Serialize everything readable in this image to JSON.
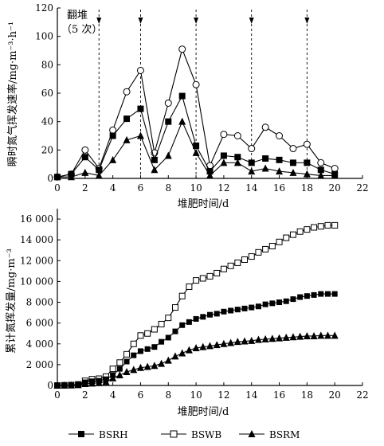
{
  "chart_data": [
    {
      "type": "line",
      "ylabel": "瞬时氮气挥发速率/mg·m⁻³·h⁻¹",
      "xlabel": "堆肥时间/d",
      "xlim": [
        0,
        22
      ],
      "ylim": [
        0,
        120
      ],
      "x_ticks": [
        "0",
        "2",
        "4",
        "6",
        "8",
        "10",
        "12",
        "14",
        "16",
        "18",
        "20",
        "22"
      ],
      "y_ticks": [
        "0",
        "20",
        "40",
        "60",
        "80",
        "100",
        "120"
      ],
      "annotation_lines": [
        "翻堆",
        "（5 次）"
      ],
      "turning_days": [
        3,
        6,
        10,
        14,
        18
      ],
      "x": [
        0,
        1,
        2,
        3,
        4,
        5,
        6,
        7,
        8,
        9,
        10,
        11,
        12,
        13,
        14,
        15,
        16,
        17,
        18,
        19,
        20
      ],
      "series": [
        {
          "name": "BSWB",
          "marker": "open-circle",
          "values": [
            1,
            3,
            20,
            7,
            34,
            61,
            76,
            18,
            53,
            91,
            66,
            9,
            31,
            30,
            21,
            36,
            30,
            21,
            24,
            11,
            7
          ]
        },
        {
          "name": "BSRH",
          "marker": "filled-square",
          "values": [
            1,
            3,
            15,
            6,
            30,
            42,
            49,
            13,
            40,
            58,
            23,
            5,
            16,
            15,
            11,
            14,
            13,
            11,
            11,
            6,
            3
          ]
        },
        {
          "name": "BSRM",
          "marker": "filled-triangle",
          "values": [
            1,
            1,
            4,
            2,
            13,
            27,
            30,
            6,
            16,
            40,
            18,
            2,
            11,
            11,
            5,
            7,
            5,
            4,
            3,
            2,
            2
          ]
        }
      ]
    },
    {
      "type": "line",
      "ylabel": "累计氮挥发量/mg·m⁻³",
      "xlabel": "堆肥时间/d",
      "xlim": [
        0,
        22
      ],
      "ylim": [
        0,
        17000
      ],
      "x_ticks": [
        "0",
        "2",
        "4",
        "6",
        "8",
        "10",
        "12",
        "14",
        "16",
        "18",
        "20",
        "22"
      ],
      "y_ticks": [
        "0",
        "2 000",
        "4 000",
        "6 000",
        "8 000",
        "10 000",
        "12 000",
        "14 000",
        "16 000"
      ],
      "y_tick_values": [
        0,
        2000,
        4000,
        6000,
        8000,
        10000,
        12000,
        14000,
        16000
      ],
      "x": [
        0,
        0.5,
        1,
        1.5,
        2,
        2.5,
        3,
        3.5,
        4,
        4.5,
        5,
        5.5,
        6,
        6.5,
        7,
        7.5,
        8,
        8.5,
        9,
        9.5,
        10,
        10.5,
        11,
        11.5,
        12,
        12.5,
        13,
        13.5,
        14,
        14.5,
        15,
        15.5,
        16,
        16.5,
        17,
        17.5,
        18,
        18.5,
        19,
        19.5,
        20
      ],
      "series": [
        {
          "name": "BSWB",
          "marker": "open-square",
          "values": [
            0,
            20,
            40,
            100,
            450,
            600,
            650,
            850,
            1600,
            2200,
            3000,
            4000,
            4800,
            5000,
            5400,
            5900,
            6500,
            7500,
            8600,
            9500,
            10100,
            10300,
            10500,
            10800,
            11200,
            11500,
            11800,
            12100,
            12400,
            12800,
            13100,
            13400,
            13800,
            14200,
            14500,
            14800,
            15000,
            15200,
            15300,
            15400,
            15400
          ]
        },
        {
          "name": "BSRH",
          "marker": "filled-square",
          "values": [
            0,
            20,
            30,
            80,
            300,
            400,
            450,
            600,
            1000,
            1600,
            2300,
            2900,
            3300,
            3500,
            3700,
            4200,
            4600,
            5200,
            5800,
            6100,
            6400,
            6600,
            6800,
            6900,
            7100,
            7200,
            7300,
            7400,
            7500,
            7600,
            7800,
            7900,
            8000,
            8100,
            8300,
            8500,
            8600,
            8700,
            8800,
            8800,
            8800
          ]
        },
        {
          "name": "BSRM",
          "marker": "filled-triangle",
          "values": [
            0,
            10,
            20,
            50,
            150,
            200,
            250,
            350,
            700,
            1000,
            1300,
            1500,
            1700,
            1800,
            1900,
            2100,
            2400,
            2800,
            3100,
            3400,
            3600,
            3700,
            3800,
            3900,
            4000,
            4100,
            4200,
            4250,
            4300,
            4400,
            4450,
            4500,
            4550,
            4600,
            4650,
            4700,
            4750,
            4750,
            4800,
            4800,
            4800
          ]
        }
      ]
    }
  ],
  "legend": [
    {
      "label": "BSRH",
      "marker": "filled-square"
    },
    {
      "label": "BSWB",
      "marker": "open-square"
    },
    {
      "label": "BSRM",
      "marker": "filled-triangle"
    }
  ]
}
